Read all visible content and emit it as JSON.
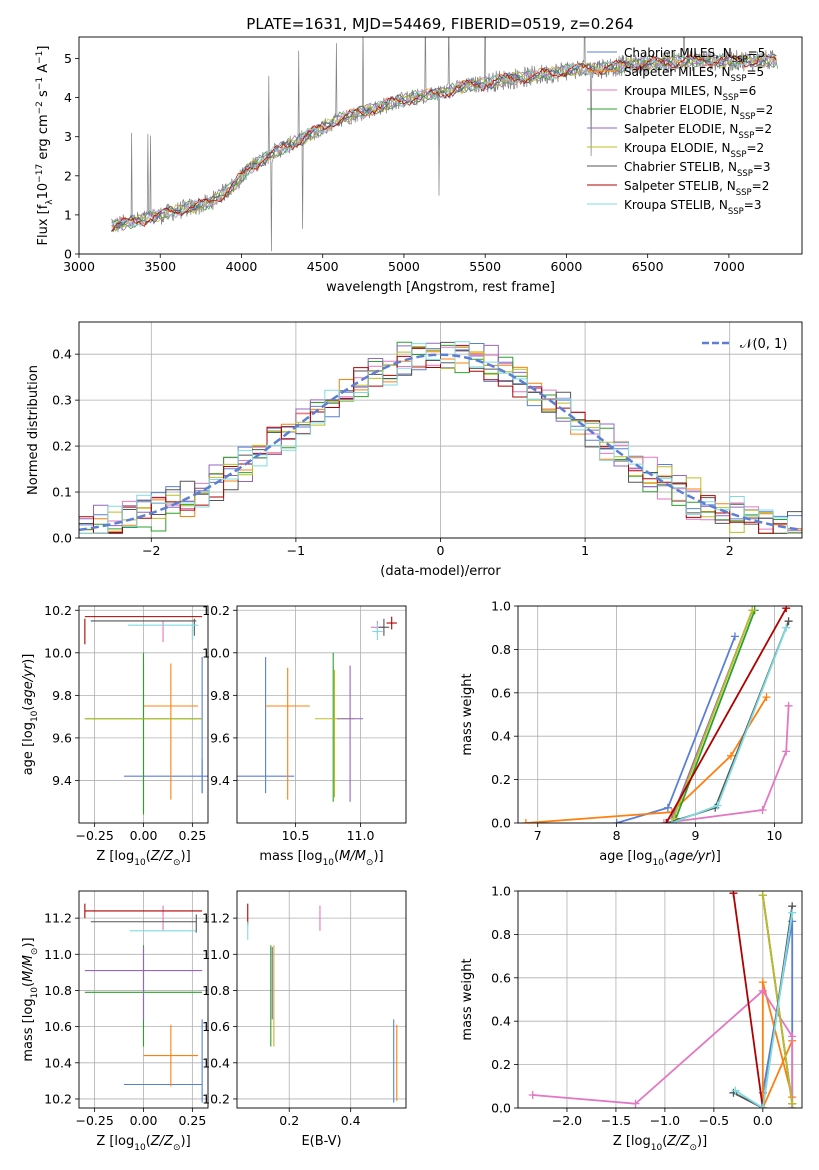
{
  "figure": {
    "title": "PLATE=1631, MJD=54469, FIBERID=0519, z=0.264"
  },
  "series_colors": {
    "Chabrier MILES": "#5b7fd6",
    "Salpeter MILES": "#ff7f0e",
    "Kroupa MILES": "#e377c2",
    "Chabrier ELODIE": "#2ca02c",
    "Salpeter ELODIE": "#9467bd",
    "Kroupa ELODIE": "#bcbd22",
    "Chabrier STELIB": "#555555",
    "Salpeter STELIB": "#b00000",
    "Kroupa STELIB": "#7fdbe0",
    "data": "#808080",
    "normal": "#5b7fd6"
  },
  "chart_data": [
    {
      "id": "spectrum",
      "type": "line",
      "xlabel": "wavelength [Angstrom, rest frame]",
      "ylabel": "Flux [f_λ 10^-17 erg cm^-2 s^-1 A^-1]",
      "xlim": [
        3000,
        7450
      ],
      "ylim": [
        0,
        5.55
      ],
      "xticks": [
        3000,
        3500,
        4000,
        4500,
        5000,
        5500,
        6000,
        6500,
        7000
      ],
      "yticks": [
        0,
        1,
        2,
        3,
        4,
        5
      ],
      "grid": false,
      "legend_position": "top-right",
      "legend": [
        {
          "label": "Chabrier MILES, N_SSP=5",
          "color": "#5b7fd6"
        },
        {
          "label": "Salpeter MILES, N_SSP=5",
          "color": "#ff7f0e"
        },
        {
          "label": "Kroupa MILES, N_SSP=6",
          "color": "#e377c2"
        },
        {
          "label": "Chabrier ELODIE, N_SSP=2",
          "color": "#2ca02c"
        },
        {
          "label": "Salpeter ELODIE, N_SSP=2",
          "color": "#9467bd"
        },
        {
          "label": "Kroupa ELODIE, N_SSP=2",
          "color": "#bcbd22"
        },
        {
          "label": "Chabrier STELIB, N_SSP=3",
          "color": "#555555"
        },
        {
          "label": "Salpeter STELIB, N_SSP=2",
          "color": "#b00000"
        },
        {
          "label": "Kroupa STELIB, N_SSP=3",
          "color": "#7fdbe0"
        }
      ],
      "continuum": {
        "x": [
          3200,
          3400,
          3600,
          3800,
          3950,
          4050,
          4200,
          4400,
          4600,
          4800,
          5000,
          5200,
          5400,
          5600,
          5800,
          6000,
          6200,
          6400,
          6600,
          6800,
          7000,
          7200,
          7300
        ],
        "y": [
          0.72,
          0.88,
          1.1,
          1.3,
          1.75,
          2.2,
          2.6,
          3.0,
          3.45,
          3.7,
          3.95,
          4.1,
          4.3,
          4.45,
          4.55,
          4.7,
          4.75,
          4.85,
          4.9,
          4.95,
          4.95,
          4.95,
          4.95
        ]
      }
    },
    {
      "id": "residuals",
      "type": "line",
      "xlabel": "(data-model)/error",
      "ylabel": "Normed distribution",
      "xlim": [
        -2.5,
        2.5
      ],
      "ylim": [
        0,
        0.47
      ],
      "xticks": [
        -2,
        -1,
        0,
        1,
        2
      ],
      "yticks": [
        0.0,
        0.1,
        0.2,
        0.3,
        0.4
      ],
      "grid": true,
      "legend_position": "top-right",
      "legend": [
        {
          "label": "𝒩(0, 1)",
          "color": "#5b7fd6",
          "style": "dashed"
        }
      ],
      "histogram_bin_width": 0.1
    },
    {
      "id": "age_vs_Z",
      "type": "scatter",
      "xlabel": "Z [log10(Z/Z⊙)]",
      "ylabel": "age [log10(age/yr)]",
      "xlim": [
        -0.33,
        0.33
      ],
      "ylim": [
        9.2,
        10.22
      ],
      "xticks": [
        -0.25,
        0.0,
        0.25
      ],
      "yticks": [
        9.4,
        9.6,
        9.8,
        10.0,
        10.2
      ],
      "grid": true,
      "errorbars": [
        {
          "series": "Chabrier MILES",
          "x": 0.3,
          "xerr": 0.4,
          "y": 9.42,
          "yerr": 0.08
        },
        {
          "series": "Chabrier MILES",
          "x": 0.3,
          "xerr": 0.0,
          "y": 9.66,
          "yerr": 0.32
        },
        {
          "series": "Salpeter MILES",
          "x": 0.14,
          "xerr": 0.14,
          "y": 9.75,
          "yerr": 0.0
        },
        {
          "series": "Salpeter MILES",
          "x": 0.14,
          "xerr": 0.0,
          "y": 9.63,
          "yerr": 0.32
        },
        {
          "series": "Salpeter MILES",
          "x": 0.0,
          "xerr": 0.0,
          "y": 9.6,
          "yerr": 0.35
        },
        {
          "series": "Kroupa MILES",
          "x": 0.1,
          "xerr": 0.0,
          "y": 10.1,
          "yerr": 0.05
        },
        {
          "series": "Chabrier ELODIE",
          "x": 0.0,
          "xerr": 0.3,
          "y": 9.69,
          "yerr": 0.0
        },
        {
          "series": "Chabrier ELODIE",
          "x": 0.0,
          "xerr": 0.0,
          "y": 9.62,
          "yerr": 0.38
        },
        {
          "series": "Kroupa ELODIE",
          "x": 0.0,
          "xerr": 0.3,
          "y": 9.69,
          "yerr": 0.0
        },
        {
          "series": "Chabrier STELIB",
          "x": 0.0,
          "xerr": 0.27,
          "y": 10.15,
          "yerr": 0.0
        },
        {
          "series": "Chabrier STELIB",
          "x": 0.26,
          "xerr": 0.0,
          "y": 10.12,
          "yerr": 0.04
        },
        {
          "series": "Salpeter STELIB",
          "x": 0.0,
          "xerr": 0.3,
          "y": 10.17,
          "yerr": 0.0
        },
        {
          "series": "Salpeter STELIB",
          "x": -0.3,
          "xerr": 0.0,
          "y": 10.1,
          "yerr": 0.06
        },
        {
          "series": "Kroupa STELIB",
          "x": 0.1,
          "xerr": 0.18,
          "y": 10.13,
          "yerr": 0.0
        },
        {
          "series": "Kroupa STELIB",
          "x": 0.25,
          "xerr": 0.0,
          "y": 10.1,
          "yerr": 0.04
        }
      ]
    },
    {
      "id": "age_vs_mass",
      "type": "scatter",
      "xlabel": "mass [log10(M/M⊙)]",
      "ylabel": "",
      "xlim": [
        10.05,
        11.35
      ],
      "ylim": [
        9.2,
        10.22
      ],
      "xticks": [
        10.5,
        11.0
      ],
      "yticks": [
        9.4,
        9.6,
        9.8,
        10.0,
        10.2
      ],
      "grid": true,
      "errorbars": [
        {
          "series": "Chabrier MILES",
          "x": 10.27,
          "xerr": 0.22,
          "y": 9.42,
          "yerr": 0.0
        },
        {
          "series": "Chabrier MILES",
          "x": 10.27,
          "xerr": 0.0,
          "y": 9.66,
          "yerr": 0.32
        },
        {
          "series": "Salpeter MILES",
          "x": 10.44,
          "xerr": 0.17,
          "y": 9.75,
          "yerr": 0.0
        },
        {
          "series": "Salpeter MILES",
          "x": 10.44,
          "xerr": 0.0,
          "y": 9.62,
          "yerr": 0.31
        },
        {
          "series": "Chabrier ELODIE",
          "x": 10.79,
          "xerr": 0.0,
          "y": 9.65,
          "yerr": 0.35
        },
        {
          "series": "Kroupa ELODIE",
          "x": 10.8,
          "xerr": 0.15,
          "y": 9.69,
          "yerr": 0.0
        },
        {
          "series": "Kroupa ELODIE",
          "x": 10.8,
          "xerr": 0.0,
          "y": 9.62,
          "yerr": 0.3
        },
        {
          "series": "Salpeter ELODIE",
          "x": 10.92,
          "xerr": 0.1,
          "y": 9.69,
          "yerr": 0.0
        },
        {
          "series": "Salpeter ELODIE",
          "x": 10.92,
          "xerr": 0.0,
          "y": 9.62,
          "yerr": 0.32
        },
        {
          "series": "Kroupa MILES",
          "x": 11.13,
          "xerr": 0.05,
          "y": 10.12,
          "yerr": 0.03
        },
        {
          "series": "Kroupa STELIB",
          "x": 11.13,
          "xerr": 0.04,
          "y": 10.1,
          "yerr": 0.04
        },
        {
          "series": "Chabrier STELIB",
          "x": 11.18,
          "xerr": 0.04,
          "y": 10.12,
          "yerr": 0.04
        },
        {
          "series": "Salpeter STELIB",
          "x": 11.24,
          "xerr": 0.04,
          "y": 10.14,
          "yerr": 0.03
        }
      ]
    },
    {
      "id": "weight_vs_age",
      "type": "line",
      "xlabel": "age [log10(age/yr)]",
      "ylabel": "mass weight",
      "xlim": [
        6.75,
        10.35
      ],
      "ylim": [
        0,
        1
      ],
      "xticks": [
        7,
        8,
        9,
        10
      ],
      "yticks": [
        0.0,
        0.2,
        0.4,
        0.6,
        0.8,
        1.0
      ],
      "grid": true,
      "series": [
        {
          "name": "Chabrier MILES",
          "x": [
            8.0,
            8.65,
            9.5
          ],
          "y": [
            0.0,
            0.07,
            0.86
          ]
        },
        {
          "name": "Salpeter MILES",
          "x": [
            6.85,
            8.7,
            9.45,
            9.9
          ],
          "y": [
            0.0,
            0.05,
            0.31,
            0.58
          ]
        },
        {
          "name": "Kroupa MILES",
          "x": [
            8.6,
            9.85,
            10.15,
            10.18
          ],
          "y": [
            0.0,
            0.06,
            0.33,
            0.54
          ]
        },
        {
          "name": "Chabrier ELODIE",
          "x": [
            8.75,
            9.75
          ],
          "y": [
            0.02,
            0.98
          ]
        },
        {
          "name": "Salpeter ELODIE",
          "x": [
            8.7,
            9.72
          ],
          "y": [
            0.02,
            0.98
          ]
        },
        {
          "name": "Kroupa ELODIE",
          "x": [
            8.72,
            9.72
          ],
          "y": [
            0.02,
            0.98
          ]
        },
        {
          "name": "Chabrier STELIB",
          "x": [
            8.65,
            9.25,
            10.18
          ],
          "y": [
            0.0,
            0.07,
            0.93
          ]
        },
        {
          "name": "Salpeter STELIB",
          "x": [
            8.63,
            10.15
          ],
          "y": [
            0.0,
            0.99
          ]
        },
        {
          "name": "Kroupa STELIB",
          "x": [
            8.7,
            9.28,
            10.15
          ],
          "y": [
            0.0,
            0.08,
            0.9
          ]
        }
      ]
    },
    {
      "id": "mass_vs_Z",
      "type": "scatter",
      "xlabel": "Z [log10(Z/Z⊙)]",
      "ylabel": "mass [log10(M/M⊙)]",
      "xlim": [
        -0.33,
        0.33
      ],
      "ylim": [
        10.15,
        11.35
      ],
      "xticks": [
        -0.25,
        0.0,
        0.25
      ],
      "yticks": [
        10.2,
        10.4,
        10.6,
        10.8,
        11.0,
        11.2
      ],
      "grid": true,
      "errorbars": [
        {
          "series": "Chabrier MILES",
          "x": 0.1,
          "xerr": 0.2,
          "y": 10.28,
          "yerr": 0.0
        },
        {
          "series": "Chabrier MILES",
          "x": 0.3,
          "xerr": 0.0,
          "y": 10.41,
          "yerr": 0.23
        },
        {
          "series": "Salpeter MILES",
          "x": 0.14,
          "xerr": 0.14,
          "y": 10.44,
          "yerr": 0.0
        },
        {
          "series": "Salpeter MILES",
          "x": 0.14,
          "xerr": 0.0,
          "y": 10.44,
          "yerr": 0.17
        },
        {
          "series": "Kroupa MILES",
          "x": 0.1,
          "xerr": 0.0,
          "y": 11.2,
          "yerr": 0.07
        },
        {
          "series": "Chabrier ELODIE",
          "x": 0.0,
          "xerr": 0.3,
          "y": 10.79,
          "yerr": 0.0
        },
        {
          "series": "Chabrier ELODIE",
          "x": 0.0,
          "xerr": 0.0,
          "y": 10.77,
          "yerr": 0.28
        },
        {
          "series": "Salpeter ELODIE",
          "x": 0.0,
          "xerr": 0.3,
          "y": 10.91,
          "yerr": 0.0
        },
        {
          "series": "Salpeter ELODIE",
          "x": 0.0,
          "xerr": 0.0,
          "y": 10.84,
          "yerr": 0.2
        },
        {
          "series": "Kroupa STELIB",
          "x": 0.1,
          "xerr": 0.17,
          "y": 11.13,
          "yerr": 0.0
        },
        {
          "series": "Chabrier STELIB",
          "x": 0.0,
          "xerr": 0.27,
          "y": 11.18,
          "yerr": 0.0
        },
        {
          "series": "Chabrier STELIB",
          "x": 0.27,
          "xerr": 0.0,
          "y": 11.17,
          "yerr": 0.05
        },
        {
          "series": "Salpeter STELIB",
          "x": 0.0,
          "xerr": 0.3,
          "y": 11.24,
          "yerr": 0.0
        },
        {
          "series": "Salpeter STELIB",
          "x": -0.3,
          "xerr": 0.0,
          "y": 11.24,
          "yerr": 0.04
        }
      ]
    },
    {
      "id": "mass_vs_EBV",
      "type": "scatter",
      "xlabel": "E(B-V)",
      "ylabel": "",
      "xlim": [
        0.03,
        0.58
      ],
      "ylim": [
        10.15,
        11.35
      ],
      "xticks": [
        0.2,
        0.4
      ],
      "yticks": [
        10.2,
        10.4,
        10.6,
        10.8,
        11.0,
        11.2
      ],
      "grid": true,
      "errorbars": [
        {
          "series": "Salpeter STELIB",
          "x": 0.065,
          "xerr": 0.0,
          "y": 11.22,
          "yerr": 0.06
        },
        {
          "series": "Kroupa STELIB",
          "x": 0.065,
          "xerr": 0.0,
          "y": 11.13,
          "yerr": 0.05
        },
        {
          "series": "Chabrier ELODIE",
          "x": 0.14,
          "xerr": 0.0,
          "y": 10.77,
          "yerr": 0.28
        },
        {
          "series": "Salpeter ELODIE",
          "x": 0.145,
          "xerr": 0.0,
          "y": 10.84,
          "yerr": 0.2
        },
        {
          "series": "Kroupa ELODIE",
          "x": 0.15,
          "xerr": 0.0,
          "y": 10.77,
          "yerr": 0.28
        },
        {
          "series": "Kroupa MILES",
          "x": 0.3,
          "xerr": 0.0,
          "y": 11.2,
          "yerr": 0.07
        },
        {
          "series": "Chabrier MILES",
          "x": 0.54,
          "xerr": 0.0,
          "y": 10.41,
          "yerr": 0.23
        },
        {
          "series": "Salpeter MILES",
          "x": 0.55,
          "xerr": 0.0,
          "y": 10.4,
          "yerr": 0.21
        }
      ]
    },
    {
      "id": "weight_vs_Z",
      "type": "line",
      "xlabel": "Z [log10(Z/Z⊙)]",
      "ylabel": "mass weight",
      "xlim": [
        -2.5,
        0.4
      ],
      "ylim": [
        0,
        1
      ],
      "xticks": [
        -2.0,
        -1.5,
        -1.0,
        -0.5,
        0.0
      ],
      "yticks": [
        0.0,
        0.2,
        0.4,
        0.6,
        0.8,
        1.0
      ],
      "grid": true,
      "series": [
        {
          "name": "Chabrier MILES",
          "x": [
            0.3,
            0.3,
            0.0
          ],
          "y": [
            0.0,
            0.86,
            0.07
          ]
        },
        {
          "name": "Salpeter MILES",
          "x": [
            0.3,
            0.0,
            0.0,
            0.3
          ],
          "y": [
            0.05,
            0.58,
            0.0,
            0.31
          ]
        },
        {
          "name": "Kroupa MILES",
          "x": [
            -2.35,
            -1.3,
            0.0,
            0.3,
            0.3
          ],
          "y": [
            0.06,
            0.02,
            0.54,
            0.33,
            0.0
          ]
        },
        {
          "name": "Chabrier ELODIE",
          "x": [
            0.0,
            0.3
          ],
          "y": [
            0.98,
            0.02
          ]
        },
        {
          "name": "Salpeter ELODIE",
          "x": [
            0.0,
            0.3
          ],
          "y": [
            0.98,
            0.02
          ]
        },
        {
          "name": "Kroupa ELODIE",
          "x": [
            0.0,
            0.3
          ],
          "y": [
            0.98,
            0.02
          ]
        },
        {
          "name": "Chabrier STELIB",
          "x": [
            0.3,
            0.0,
            -0.3
          ],
          "y": [
            0.93,
            0.0,
            0.07
          ]
        },
        {
          "name": "Salpeter STELIB",
          "x": [
            -0.3,
            0.0
          ],
          "y": [
            0.99,
            0.0
          ]
        },
        {
          "name": "Kroupa STELIB",
          "x": [
            0.3,
            0.0,
            -0.28
          ],
          "y": [
            0.9,
            0.0,
            0.08
          ]
        }
      ]
    }
  ]
}
